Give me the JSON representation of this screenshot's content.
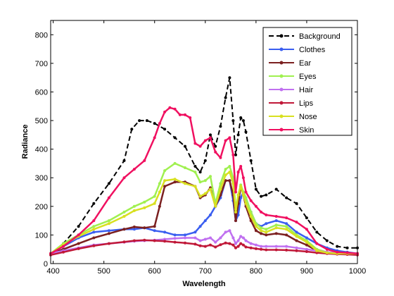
{
  "chart_data": {
    "type": "line",
    "title": "",
    "xlabel": "Wavelength",
    "ylabel": "Radiance",
    "xlim": [
      395,
      1000
    ],
    "ylim": [
      0,
      850
    ],
    "xticks": [
      400,
      500,
      600,
      700,
      800,
      900,
      1000
    ],
    "yticks": [
      0,
      100,
      200,
      300,
      400,
      500,
      600,
      700,
      800
    ],
    "grid": false,
    "legend_position": "top-right",
    "series": [
      {
        "name": "Background",
        "color": "#000000",
        "dashed": true,
        "x": [
          395,
          420,
          450,
          480,
          510,
          540,
          555,
          570,
          585,
          600,
          620,
          640,
          660,
          680,
          690,
          700,
          710,
          720,
          730,
          740,
          748,
          755,
          760,
          765,
          770,
          775,
          780,
          790,
          800,
          810,
          820,
          840,
          860,
          880,
          900,
          920,
          940,
          960,
          980,
          1000
        ],
        "y": [
          35,
          70,
          130,
          210,
          280,
          360,
          470,
          500,
          500,
          490,
          470,
          440,
          410,
          340,
          320,
          360,
          450,
          410,
          480,
          580,
          650,
          500,
          380,
          450,
          510,
          500,
          460,
          360,
          260,
          235,
          240,
          260,
          230,
          210,
          160,
          110,
          80,
          60,
          55,
          55
        ]
      },
      {
        "name": "Clothes",
        "color": "#3a5ef0",
        "dashed": false,
        "x": [
          395,
          420,
          450,
          480,
          510,
          540,
          560,
          580,
          600,
          620,
          640,
          660,
          680,
          690,
          700,
          710,
          720,
          730,
          740,
          748,
          755,
          760,
          765,
          770,
          775,
          780,
          790,
          800,
          810,
          820,
          840,
          860,
          880,
          900,
          920,
          940,
          960,
          980,
          1000
        ],
        "y": [
          35,
          60,
          90,
          110,
          115,
          120,
          120,
          125,
          115,
          110,
          100,
          100,
          110,
          130,
          150,
          170,
          200,
          230,
          290,
          290,
          220,
          150,
          170,
          230,
          250,
          230,
          180,
          140,
          130,
          140,
          150,
          140,
          110,
          90,
          70,
          55,
          45,
          40,
          35
        ]
      },
      {
        "name": "Ear",
        "color": "#7b2020",
        "dashed": false,
        "x": [
          395,
          420,
          450,
          480,
          510,
          540,
          560,
          580,
          600,
          610,
          620,
          640,
          660,
          680,
          690,
          700,
          710,
          720,
          730,
          740,
          748,
          755,
          760,
          765,
          770,
          775,
          780,
          790,
          800,
          810,
          820,
          840,
          860,
          880,
          900,
          920,
          940,
          960,
          980,
          1000
        ],
        "y": [
          35,
          50,
          70,
          90,
          105,
          120,
          128,
          125,
          130,
          200,
          270,
          285,
          285,
          270,
          230,
          240,
          265,
          200,
          240,
          290,
          290,
          240,
          150,
          210,
          270,
          240,
          200,
          150,
          115,
          105,
          100,
          105,
          100,
          80,
          65,
          45,
          40,
          35,
          35,
          35
        ]
      },
      {
        "name": "Eyes",
        "color": "#a0f050",
        "dashed": false,
        "x": [
          395,
          420,
          450,
          480,
          510,
          540,
          560,
          580,
          600,
          610,
          620,
          640,
          660,
          680,
          690,
          700,
          710,
          720,
          730,
          740,
          748,
          755,
          760,
          765,
          770,
          775,
          780,
          790,
          800,
          810,
          820,
          840,
          860,
          880,
          900,
          920,
          940,
          960,
          980,
          1000
        ],
        "y": [
          35,
          70,
          100,
          130,
          150,
          180,
          200,
          215,
          235,
          280,
          325,
          350,
          335,
          320,
          285,
          290,
          305,
          210,
          280,
          330,
          340,
          300,
          190,
          240,
          275,
          250,
          230,
          180,
          140,
          125,
          120,
          135,
          130,
          100,
          80,
          50,
          40,
          35,
          35,
          35
        ]
      },
      {
        "name": "Hair",
        "color": "#c070f0",
        "dashed": false,
        "x": [
          395,
          420,
          450,
          480,
          510,
          540,
          560,
          580,
          600,
          620,
          640,
          660,
          680,
          690,
          700,
          710,
          720,
          730,
          740,
          748,
          755,
          760,
          765,
          770,
          775,
          780,
          790,
          800,
          810,
          820,
          840,
          860,
          880,
          900,
          920,
          940,
          960,
          980,
          1000
        ],
        "y": [
          35,
          45,
          55,
          65,
          70,
          75,
          78,
          80,
          82,
          85,
          88,
          90,
          90,
          80,
          85,
          90,
          75,
          90,
          110,
          115,
          90,
          70,
          80,
          95,
          90,
          80,
          70,
          65,
          60,
          60,
          60,
          60,
          55,
          50,
          45,
          40,
          38,
          35,
          35
        ]
      },
      {
        "name": "Lips",
        "color": "#c01838",
        "dashed": false,
        "x": [
          395,
          420,
          450,
          480,
          510,
          540,
          560,
          580,
          600,
          620,
          640,
          660,
          680,
          690,
          700,
          710,
          720,
          730,
          740,
          748,
          755,
          760,
          765,
          770,
          775,
          780,
          790,
          800,
          810,
          820,
          840,
          860,
          880,
          900,
          920,
          940,
          960,
          980,
          1000
        ],
        "y": [
          30,
          40,
          52,
          62,
          70,
          76,
          80,
          82,
          80,
          78,
          75,
          72,
          68,
          62,
          60,
          65,
          58,
          66,
          72,
          70,
          65,
          55,
          60,
          70,
          65,
          58,
          55,
          52,
          50,
          48,
          48,
          47,
          45,
          42,
          38,
          35,
          33,
          32,
          30
        ]
      },
      {
        "name": "Nose",
        "color": "#d8e020",
        "dashed": false,
        "x": [
          395,
          420,
          450,
          480,
          510,
          540,
          560,
          580,
          600,
          610,
          620,
          640,
          660,
          680,
          690,
          700,
          710,
          720,
          730,
          740,
          748,
          755,
          760,
          765,
          770,
          775,
          780,
          790,
          800,
          810,
          820,
          840,
          860,
          880,
          900,
          920,
          940,
          960,
          980,
          1000
        ],
        "y": [
          35,
          65,
          95,
          120,
          140,
          165,
          185,
          195,
          210,
          250,
          290,
          295,
          280,
          270,
          235,
          245,
          260,
          200,
          260,
          310,
          320,
          280,
          180,
          240,
          270,
          240,
          210,
          165,
          130,
          115,
          110,
          125,
          120,
          95,
          75,
          45,
          38,
          35,
          35,
          35
        ]
      },
      {
        "name": "Skin",
        "color": "#f01060",
        "dashed": false,
        "x": [
          395,
          420,
          450,
          480,
          510,
          540,
          560,
          580,
          600,
          610,
          620,
          630,
          640,
          650,
          660,
          670,
          680,
          690,
          700,
          710,
          720,
          730,
          740,
          748,
          755,
          760,
          765,
          770,
          775,
          780,
          790,
          800,
          810,
          820,
          840,
          860,
          880,
          900,
          920,
          940,
          960,
          980,
          1000
        ],
        "y": [
          35,
          60,
          100,
          150,
          230,
          300,
          330,
          360,
          440,
          490,
          530,
          545,
          540,
          520,
          520,
          510,
          420,
          410,
          430,
          440,
          390,
          370,
          430,
          440,
          380,
          250,
          320,
          340,
          300,
          250,
          220,
          200,
          180,
          170,
          165,
          160,
          145,
          120,
          70,
          50,
          40,
          38,
          35
        ]
      }
    ]
  }
}
